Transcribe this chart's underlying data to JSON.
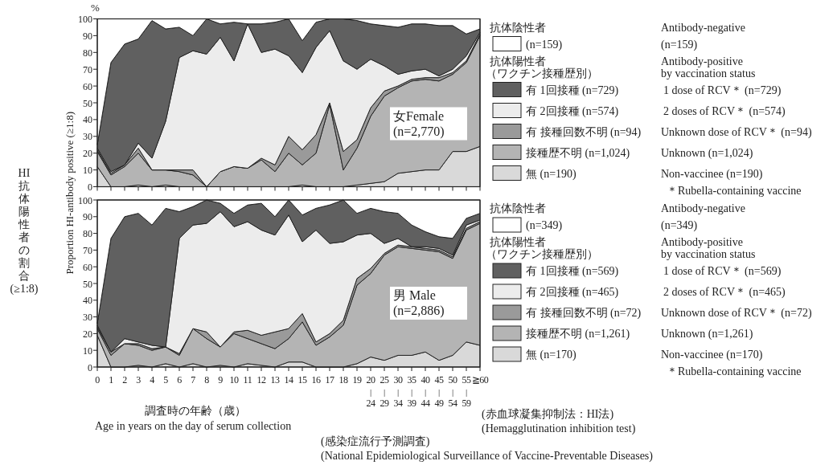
{
  "chart_data": [
    {
      "type": "area",
      "stacked": true,
      "tick_labels": "y",
      "legend": "right",
      "grid": false,
      "ylabel": "Proportion HI-antibody positive (≥1:8)",
      "categories": [
        null,
        null,
        null,
        null,
        null,
        null,
        null,
        null,
        null,
        null,
        null,
        null,
        null,
        null,
        null,
        null,
        null,
        null,
        null,
        null,
        null,
        null,
        null,
        null,
        null,
        null,
        null,
        null,
        null
      ],
      "ylim": [
        0,
        100
      ],
      "yticks": [
        0,
        10,
        20,
        30,
        40,
        50,
        60,
        70,
        80,
        90,
        100
      ],
      "series": [
        {
          "name": "無 (n=190)",
          "color": "#d9d9d9",
          "values": [
            12,
            0,
            0,
            1,
            0,
            1,
            0,
            0,
            0,
            0,
            0,
            0,
            0,
            0,
            0,
            1,
            0,
            0,
            0,
            1,
            2,
            3,
            8,
            9,
            10,
            10,
            21,
            21,
            24
          ]
        },
        {
          "name": "接種歴不明 (n=1,024)",
          "color": "#b4b4b4",
          "values": [
            9,
            7,
            12,
            19,
            10,
            9,
            9,
            7,
            0,
            9,
            12,
            11,
            16,
            9,
            20,
            12,
            20,
            49,
            10,
            22,
            40,
            51,
            51,
            54,
            54,
            53,
            46,
            53,
            66
          ]
        },
        {
          "name": "有 接種回数不明 (n=94)",
          "color": "#9a9a9a",
          "values": [
            1,
            1,
            1,
            3,
            0,
            0,
            1,
            3,
            0,
            0,
            0,
            0,
            1,
            4,
            10,
            9,
            11,
            1,
            11,
            5,
            5,
            3,
            1,
            1,
            1,
            2,
            1,
            1,
            1
          ]
        },
        {
          "name": "有 2回接種 (n=574)",
          "color": "#ececec",
          "values": [
            1,
            1,
            0,
            3,
            7,
            29,
            67,
            71,
            79,
            80,
            63,
            86,
            63,
            69,
            48,
            46,
            52,
            43,
            54,
            42,
            29,
            15,
            7,
            5,
            5,
            1,
            2,
            3,
            1
          ]
        },
        {
          "name": "有 1回接種 (n=729)",
          "color": "#606060",
          "values": [
            2,
            65,
            72,
            62,
            82,
            55,
            18,
            9,
            21,
            8,
            23,
            0,
            17,
            16,
            22,
            19,
            15,
            7,
            25,
            29,
            21,
            24,
            28,
            28,
            27,
            30,
            26,
            13,
            2
          ]
        },
        {
          "name": "(n=159)",
          "color": "#ffffff",
          "values": [
            75,
            26,
            15,
            12,
            1,
            6,
            5,
            10,
            0,
            3,
            2,
            3,
            3,
            2,
            0,
            13,
            2,
            0,
            0,
            1,
            3,
            4,
            5,
            3,
            3,
            4,
            4,
            9,
            6
          ]
        }
      ],
      "annotations": [
        "抗体陰性者",
        "抗体陽性者",
        "（ワクチン接種歴別）",
        "Antibody-negative",
        "(n=159)",
        "Antibody-positive",
        "by vaccination status",
        "1 dose of RCV＊ (n=729)",
        "2 doses of RCV＊ (n=574)",
        "Unknown dose of RCV＊ (n=94)",
        "Unknown (n=1,024)",
        "Non-vaccinee (n=190)",
        "＊Rubella-containing vaccine",
        "女Female",
        "(n=2,770)",
        "%",
        "HI抗体陽性者の割合(≥1:8)"
      ]
    },
    {
      "type": "area",
      "stacked": true,
      "legend": "right",
      "grid": false,
      "xlabel": "調査時の年齢（歳）",
      "categories": [
        "0",
        "1",
        "2",
        "3",
        "4",
        "5",
        "6",
        "7",
        "8",
        "9",
        "10",
        "11",
        "12",
        "13",
        "14",
        "15",
        "16",
        "17",
        "18",
        "19",
        "20\n|\n24",
        "25\n|\n29",
        "30\n|\n34",
        "35\n|\n39",
        "40\n|\n44",
        "45\n|\n49",
        "50\n|\n54",
        "55\n|\n59",
        "≧60"
      ],
      "ylim": [
        0,
        100
      ],
      "yticks": [
        0,
        10,
        20,
        30,
        40,
        50,
        60,
        70,
        80,
        90,
        100
      ],
      "series": [
        {
          "name": "無 (n=170)",
          "color": "#d9d9d9",
          "values": [
            19,
            0,
            0,
            1,
            0,
            2,
            0,
            2,
            0,
            1,
            0,
            2,
            1,
            0,
            3,
            3,
            0,
            0,
            0,
            2,
            6,
            4,
            7,
            7,
            9,
            4,
            7,
            15,
            13
          ]
        },
        {
          "name": "接種歴不明 (n=1,261)",
          "color": "#b4b4b4",
          "values": [
            4,
            7,
            14,
            12,
            10,
            10,
            7,
            21,
            17,
            11,
            20,
            15,
            13,
            11,
            14,
            24,
            13,
            18,
            25,
            47,
            50,
            63,
            65,
            64,
            61,
            65,
            58,
            67,
            73
          ]
        },
        {
          "name": "有 接種回数不明 (n=72)",
          "color": "#9a9a9a",
          "values": [
            1,
            2,
            0,
            1,
            1,
            0,
            1,
            0,
            4,
            0,
            1,
            5,
            5,
            10,
            6,
            5,
            2,
            2,
            3,
            4,
            3,
            1,
            1,
            1,
            1,
            1,
            1,
            1,
            1
          ]
        },
        {
          "name": "有 2回接種 (n=465)",
          "color": "#ececec",
          "values": [
            1,
            0,
            3,
            1,
            2,
            0,
            69,
            62,
            65,
            81,
            63,
            65,
            63,
            58,
            68,
            43,
            67,
            54,
            47,
            26,
            21,
            6,
            4,
            0,
            1,
            1,
            1,
            2,
            1
          ]
        },
        {
          "name": "有 1回接種 (n=569)",
          "color": "#606060",
          "values": [
            1,
            68,
            73,
            77,
            72,
            83,
            16,
            11,
            14,
            5,
            8,
            10,
            16,
            11,
            9,
            16,
            13,
            23,
            25,
            13,
            15,
            19,
            15,
            13,
            9,
            7,
            10,
            4,
            4
          ]
        },
        {
          "name": "(n=349)",
          "color": "#ffffff",
          "values": [
            74,
            23,
            10,
            8,
            15,
            5,
            7,
            4,
            0,
            2,
            8,
            3,
            2,
            10,
            0,
            9,
            5,
            3,
            0,
            8,
            5,
            7,
            8,
            15,
            19,
            22,
            23,
            11,
            8
          ]
        }
      ],
      "annotations": [
        "抗体陰性者",
        "抗体陽性者",
        "（ワクチン接種歴別）",
        "Antibody-negative",
        "(n=349)",
        "Antibody-positive",
        "by vaccination status",
        "1 dose of RCV＊ (n=569)",
        "2 doses of RCV＊ (n=465)",
        "Unknown dose of RCV＊ (n=72)",
        "Unknown (n=1,261)",
        "Non-vaccinee (n=170)",
        "＊Rubella-containing vaccine",
        "男 Male",
        "(n=2,886)",
        "Age in years on the day of serum collection",
        "(赤血球凝集抑制法：HI法)",
        "(Hemagglutination inhibition test)",
        "(感染症流行予測調査)",
        "(National Epidemiological Surveillance of Vaccine-Preventable Diseases)"
      ]
    }
  ]
}
